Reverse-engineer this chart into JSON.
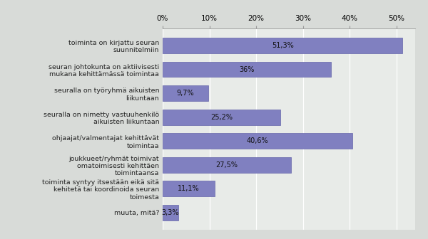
{
  "categories": [
    "muuta, mitä?",
    "toiminta syntyy itsestään eikä sitä\nkehitetä tai koordinoida seuran\ntoimesta",
    "joukkueet/ryhmät toimivat\nomatoimisesti kehittäen\ntoimintaansa",
    "ohjaajat/valmentajat kehittävät\ntoimintaa",
    "seuralla on nimetty vastuuhenkilö\naikuisten liikuntaan",
    "seuralla on työryhmä aikuisten\nliikuntaan",
    "seuran johtokunta on aktiivisesti\nmukana kehittämässä toimintaa",
    "toiminta on kirjattu seuran\nsuunnitelmiin"
  ],
  "value_labels": [
    "3,3%",
    "11,1%",
    "27,5%",
    "40,6%",
    "25,2%",
    "9,7%",
    "36%",
    "51,3%"
  ],
  "values": [
    3.3,
    11.1,
    27.5,
    40.6,
    25.2,
    9.7,
    36.0,
    51.3
  ],
  "bar_color": "#8080c0",
  "bar_edge_color": "#6666aa",
  "label_color": "#222222",
  "background_color": "#e8ebe8",
  "plot_bg_color": "#e8ebe8",
  "outer_bg_color": "#d8dbd8",
  "xlim": [
    0,
    54
  ],
  "xticks": [
    0,
    10,
    20,
    30,
    40,
    50
  ],
  "xtick_labels": [
    "0%",
    "10%",
    "20%",
    "30%",
    "40%",
    "50%"
  ],
  "value_label_fontsize": 7.0,
  "category_fontsize": 6.8,
  "tick_fontsize": 7.5
}
